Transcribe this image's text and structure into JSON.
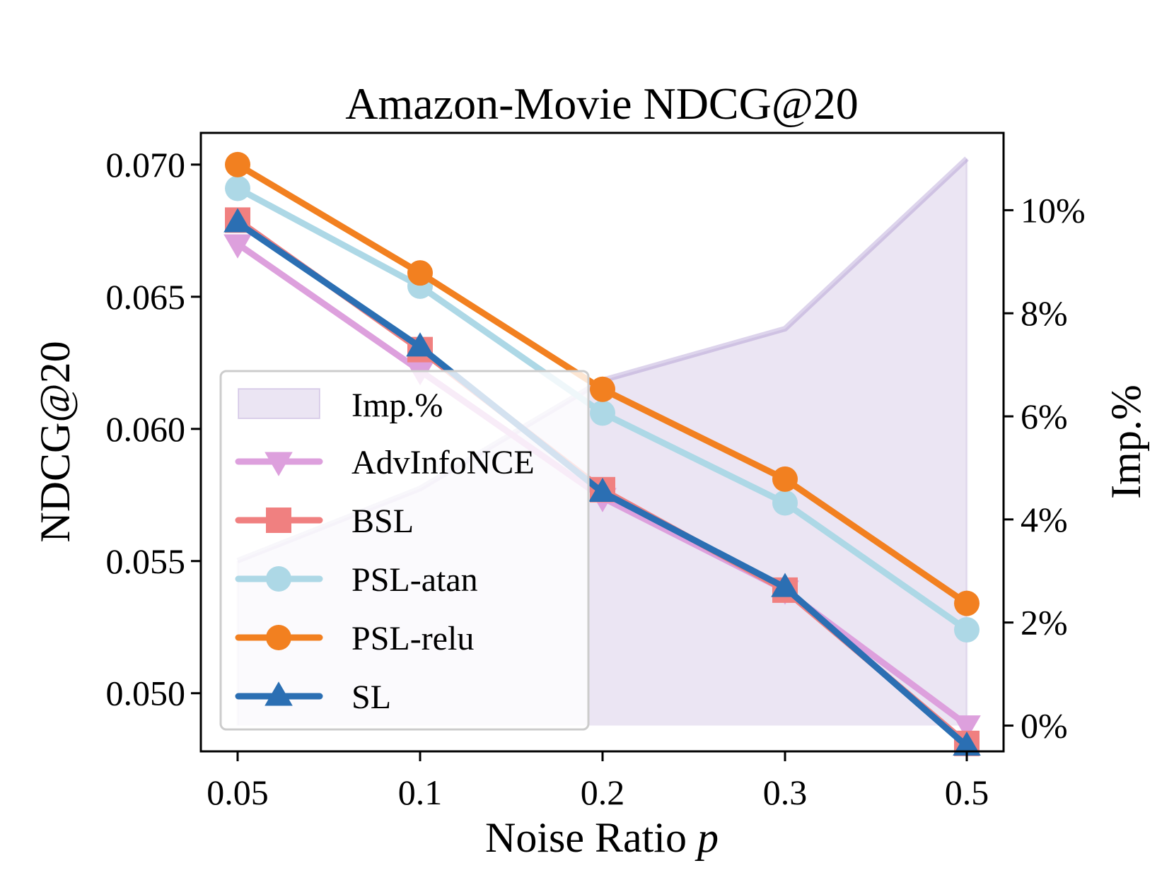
{
  "chart_data": {
    "type": "line",
    "title": "Amazon-Movie  NDCG@20",
    "xlabel": "Noise Ratio",
    "xlabel_var": "p",
    "ylabel": "NDCG@20",
    "ylabel_right": "Imp.%",
    "categories": [
      "0.05",
      "0.1",
      "0.2",
      "0.3",
      "0.5"
    ],
    "ylim": [
      0.0478,
      0.0712
    ],
    "yticks": [
      0.05,
      0.055,
      0.06,
      0.065,
      0.07
    ],
    "ytick_labels": [
      "0.050",
      "0.055",
      "0.060",
      "0.065",
      "0.070"
    ],
    "y2lim": [
      -0.5,
      11.5
    ],
    "y2ticks": [
      0,
      2,
      4,
      6,
      8,
      10
    ],
    "y2tick_labels": [
      "0%",
      "2%",
      "4%",
      "6%",
      "8%",
      "10%"
    ],
    "grid": false,
    "legend_position": "center-left",
    "imp_area": {
      "name": "Imp.%",
      "values": [
        3.2,
        4.6,
        6.7,
        7.7,
        11.0
      ],
      "color": "#8e6fbf"
    },
    "series": [
      {
        "name": "AdvInfoNCE",
        "values": [
          0.067,
          0.0622,
          0.0574,
          0.0539,
          0.0488
        ],
        "color": "#dda0dd",
        "marker": "triangle-down"
      },
      {
        "name": "BSL",
        "values": [
          0.0679,
          0.063,
          0.0577,
          0.0539,
          0.0481
        ],
        "color": "#f08080",
        "marker": "square"
      },
      {
        "name": "PSL-atan",
        "values": [
          0.0691,
          0.0654,
          0.0606,
          0.0572,
          0.0524
        ],
        "color": "#add8e6",
        "marker": "circle"
      },
      {
        "name": "PSL-relu",
        "values": [
          0.07,
          0.0659,
          0.0615,
          0.0581,
          0.0534
        ],
        "color": "#f28020",
        "marker": "circle"
      },
      {
        "name": "SL",
        "values": [
          0.0678,
          0.0631,
          0.0576,
          0.054,
          0.048
        ],
        "color": "#2b6fb3",
        "marker": "triangle-up"
      }
    ]
  }
}
